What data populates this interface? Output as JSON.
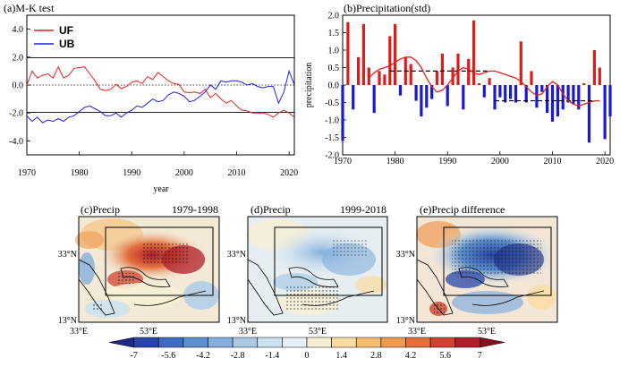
{
  "chart_data": [
    {
      "type": "line",
      "title": "(a)M-K test",
      "xlabel": "year",
      "ylabel": "",
      "xlim": [
        1970,
        2021
      ],
      "ylim": [
        -5,
        5
      ],
      "x_ticks": [
        "1970",
        "1980",
        "1990",
        "2000",
        "2010",
        "2020"
      ],
      "y_ticks": [
        "-4.0",
        "-2.0",
        "0.0",
        "2.0",
        "4.0"
      ],
      "reference_lines": {
        "solid": [
          -1.96,
          1.96
        ],
        "dotted": [
          0
        ]
      },
      "legend": [
        "UF",
        "UB"
      ],
      "legend_position": "top-left",
      "x": [
        1970,
        1971,
        1972,
        1973,
        1974,
        1975,
        1976,
        1977,
        1978,
        1979,
        1980,
        1981,
        1982,
        1983,
        1984,
        1985,
        1986,
        1987,
        1988,
        1989,
        1990,
        1991,
        1992,
        1993,
        1994,
        1995,
        1996,
        1997,
        1998,
        1999,
        2000,
        2001,
        2002,
        2003,
        2004,
        2005,
        2006,
        2007,
        2008,
        2009,
        2010,
        2011,
        2012,
        2013,
        2014,
        2015,
        2016,
        2017,
        2018,
        2019,
        2020,
        2021
      ],
      "series": [
        {
          "name": "UF",
          "color": "#e8221f",
          "values": [
            0.0,
            1.0,
            0.5,
            0.7,
            0.8,
            0.5,
            1.3,
            0.5,
            0.7,
            1.2,
            1.25,
            1.3,
            0.8,
            0.3,
            -0.3,
            -0.4,
            -0.3,
            0.05,
            -0.25,
            -0.1,
            0.2,
            0.3,
            0.1,
            0.6,
            0.4,
            0.9,
            0.6,
            0.3,
            0.1,
            0.05,
            -0.5,
            -0.55,
            -0.5,
            -0.6,
            -0.3,
            -0.9,
            -0.6,
            -1.0,
            -1.3,
            -1.1,
            -1.5,
            -1.8,
            -1.85,
            -2.0,
            -2.0,
            -2.0,
            -2.1,
            -2.3,
            -2.0,
            -1.8,
            -2.0,
            -2.3
          ]
        },
        {
          "name": "UB",
          "color": "#2020e8",
          "values": [
            -2.2,
            -2.6,
            -2.3,
            -2.7,
            -2.5,
            -2.6,
            -2.4,
            -2.6,
            -2.3,
            -2.2,
            -1.9,
            -1.6,
            -1.5,
            -1.7,
            -1.9,
            -2.2,
            -2.2,
            -2.0,
            -2.3,
            -2.0,
            -1.8,
            -1.5,
            -1.6,
            -1.3,
            -1.0,
            -1.2,
            -1.1,
            -0.7,
            -0.5,
            -0.6,
            -0.8,
            -1.2,
            -1.1,
            -0.8,
            -0.5,
            0.0,
            -0.3,
            0.3,
            0.2,
            0.3,
            0.3,
            0.2,
            0.0,
            0.1,
            -0.1,
            -0.2,
            -0.1,
            -0.1,
            -1.3,
            -0.5,
            1.0,
            0.0
          ]
        }
      ]
    },
    {
      "type": "bar",
      "title": "(b)Precipitation(std)",
      "xlabel": "",
      "ylabel": "precipitation",
      "xlim": [
        1970,
        2021
      ],
      "ylim": [
        -2.0,
        2.0
      ],
      "x_ticks": [
        "1970",
        "1980",
        "1990",
        "2000",
        "2010",
        "2020"
      ],
      "y_ticks": [
        "-2.0",
        "-1.5",
        "-1.0",
        "-0.5",
        "0.0",
        "0.5",
        "1.0",
        "1.5",
        "2.0"
      ],
      "x": [
        1970,
        1971,
        1972,
        1973,
        1974,
        1975,
        1976,
        1977,
        1978,
        1979,
        1980,
        1981,
        1982,
        1983,
        1984,
        1985,
        1986,
        1987,
        1988,
        1989,
        1990,
        1991,
        1992,
        1993,
        1994,
        1995,
        1996,
        1997,
        1998,
        1999,
        2000,
        2001,
        2002,
        2003,
        2004,
        2005,
        2006,
        2007,
        2008,
        2009,
        2010,
        2011,
        2012,
        2013,
        2014,
        2015,
        2016,
        2017,
        2018,
        2019,
        2020,
        2021
      ],
      "values": [
        -1.6,
        1.8,
        -0.7,
        0.8,
        1.75,
        0.5,
        -0.8,
        0.4,
        0.3,
        1.4,
        1.75,
        -0.3,
        0.8,
        0.6,
        -0.45,
        -0.9,
        -0.65,
        -0.4,
        0.4,
        0.9,
        -0.6,
        0.5,
        0.9,
        -0.7,
        0.75,
        1.85,
        0.05,
        -0.35,
        0.2,
        -0.7,
        -0.35,
        -0.5,
        -0.4,
        -0.5,
        1.25,
        -0.5,
        0.4,
        -0.65,
        -0.2,
        -0.8,
        -1.05,
        -0.9,
        -0.7,
        -0.5,
        -0.55,
        -0.7,
        0.05,
        -1.65,
        1.0,
        0.5,
        -1.55,
        -0.9
      ],
      "positive_color": "#dd1c1c",
      "negative_color": "#1a1ad4",
      "smooth_curve_color": "#e8221f",
      "smooth": [
        0.2,
        0.35,
        0.45,
        0.5,
        0.55,
        0.65,
        0.75,
        0.8,
        0.8,
        0.7,
        0.5,
        0.2,
        -0.05,
        -0.2,
        -0.15,
        0.0,
        0.2,
        0.4,
        0.5,
        0.45,
        0.35,
        0.3,
        0.35,
        0.4,
        0.4,
        0.35,
        0.3,
        0.25,
        0.2,
        0.1,
        -0.05,
        -0.2,
        -0.3,
        -0.25,
        -0.05,
        0.1,
        0.0,
        -0.25,
        -0.45,
        -0.55,
        -0.6,
        -0.55,
        -0.5,
        -0.45,
        -0.45
      ],
      "smooth_x_start": 1975,
      "mean_lines": [
        {
          "x": [
            1979,
            1998
          ],
          "value": 0.4
        },
        {
          "x": [
            1999,
            2018
          ],
          "value": -0.45
        }
      ]
    }
  ],
  "maps": [
    {
      "title": "(c)Precip",
      "period": "1979-1998",
      "lat_labels": [
        "33°N",
        "13°N"
      ],
      "lon_labels": [
        "33°E",
        "53°E"
      ]
    },
    {
      "title": "(d)Precip",
      "period": "1999-2018",
      "lat_labels": [
        "33°N",
        "13°N"
      ],
      "lon_labels": [
        "33°E",
        "53°E"
      ]
    },
    {
      "title": "(e)Precip difference",
      "period": "",
      "lat_labels": [
        "33°N",
        "13°N"
      ],
      "lon_labels": [
        "33°E",
        "53°E"
      ]
    }
  ],
  "colorbar": {
    "labels": [
      "-7",
      "-5.6",
      "-4.2",
      "-2.8",
      "-1.4",
      "0",
      "1.4",
      "2.8",
      "4.2",
      "5.6",
      "7"
    ],
    "colors": [
      "#1a2a85",
      "#2745a8",
      "#3e6dbf",
      "#5b8fd0",
      "#84afdd",
      "#a9cbe8",
      "#cde2f0",
      "#e6f0f5",
      "#f7efd3",
      "#fbdca0",
      "#f6bd72",
      "#ef9a53",
      "#e3703d",
      "#cf4330",
      "#b01f2a",
      "#880f1f"
    ]
  }
}
